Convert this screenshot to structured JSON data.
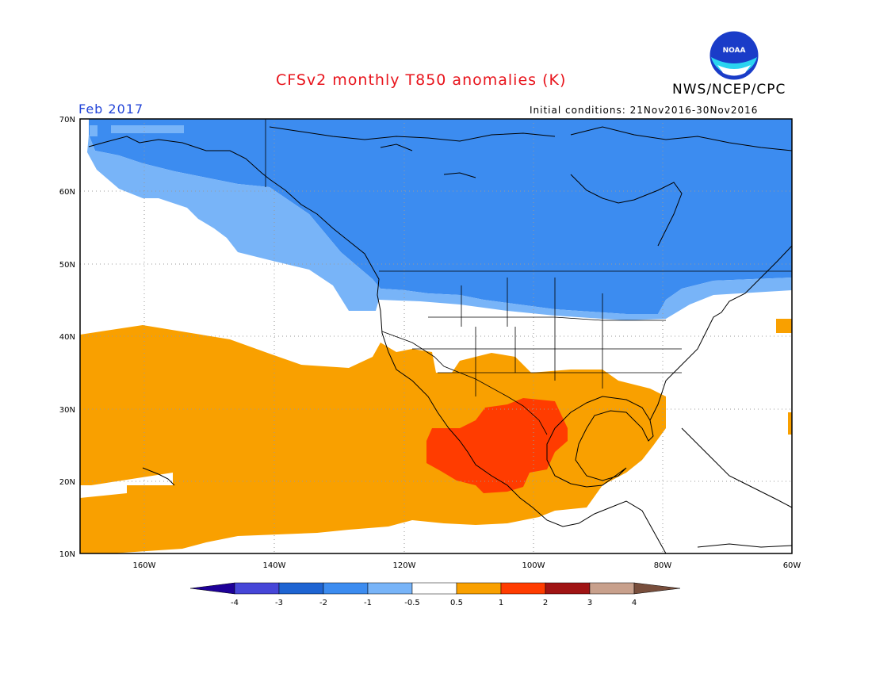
{
  "header": {
    "title": "CFSv2 monthly T850 anomalies (K)",
    "org": "NWS/NCEP/CPC",
    "month": "Feb 2017",
    "initial_conditions": "Initial conditions: 21Nov2016-30Nov2016",
    "logo_text": "NOAA"
  },
  "map": {
    "lat_labels": [
      "70N",
      "60N",
      "50N",
      "40N",
      "30N",
      "20N",
      "10N"
    ],
    "lon_labels": [
      "160W",
      "140W",
      "120W",
      "100W",
      "80W",
      "60W"
    ],
    "lat_range": [
      10,
      70
    ],
    "lon_range": [
      -170,
      -60
    ],
    "anomaly_regions": [
      {
        "region": "Alaska, Canada and northern North Pacific",
        "anomaly_class": "-1 to -0.5 / -2 to -1",
        "color": "#3c8cf0"
      },
      {
        "region": "Central United States and open Pacific band",
        "anomaly_class": "-0.5 to 0.5",
        "color": "#ffffff"
      },
      {
        "region": "Tropical/subtropical Pacific, southern US, Gulf",
        "anomaly_class": "0.5 to 1",
        "color": "#f9a000"
      },
      {
        "region": "Mexico and northwestern Gulf of Mexico",
        "anomaly_class": "1 to 2",
        "color": "#ff3c00"
      }
    ]
  },
  "colorbar": {
    "labels": [
      "-4",
      "-3",
      "-2",
      "-1",
      "-0.5",
      "0.5",
      "1",
      "2",
      "3",
      "4"
    ],
    "colors": [
      "#1e0098",
      "#4646d8",
      "#1e64d2",
      "#3c8cf0",
      "#78b4f8",
      "#ffffff",
      "#f9a000",
      "#ff3c00",
      "#a01414",
      "#c8a08c",
      "#784e3c"
    ]
  }
}
